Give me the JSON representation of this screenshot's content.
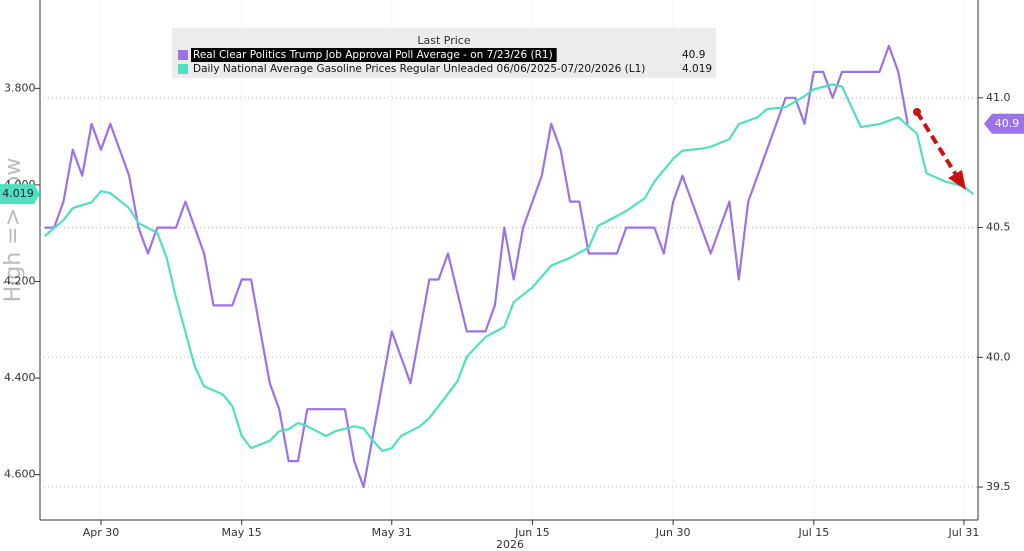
{
  "chart_data": {
    "type": "line",
    "y_label": "High => Low",
    "x_label": "2026",
    "legend_title": "Last Price",
    "legend_position": "top",
    "xlim": [
      113.5,
      213.5
    ],
    "xticks": [
      {
        "value": 120,
        "label": "Apr 30"
      },
      {
        "value": 135,
        "label": "May 15"
      },
      {
        "value": 151,
        "label": "May 31"
      },
      {
        "value": 166,
        "label": "Jun 15"
      },
      {
        "value": 181,
        "label": "Jun 30"
      },
      {
        "value": 196,
        "label": "Jul 15"
      },
      {
        "value": 212,
        "label": "Jul 31"
      }
    ],
    "ylim": [
      3.617,
      4.694
    ],
    "y_inverted": true,
    "yticks": [
      {
        "value": 3.8,
        "label": "3.800"
      },
      {
        "value": 4.0,
        "label": "4.000"
      },
      {
        "value": 4.2,
        "label": "4.200"
      },
      {
        "value": 4.4,
        "label": "4.400"
      },
      {
        "value": 4.6,
        "label": "4.600"
      }
    ],
    "y2lim": [
      39.373,
      41.377
    ],
    "y2ticks": [
      {
        "value": 41,
        "label": "41.0"
      },
      40.5,
      {
        "value": 40,
        "label": "40.0"
      },
      39.5
    ],
    "grid": true,
    "series": [
      {
        "name": "Real Clear Politics Trump Job Approval Poll Average -  on 7/23/26  (R1)",
        "color": "#9b72e8",
        "axis": "y2",
        "last_price": "40.9",
        "x": [
          114,
          115,
          116,
          117,
          118,
          119,
          120,
          121,
          122,
          123,
          124,
          125,
          126,
          128,
          129,
          130,
          131,
          132,
          134,
          135,
          136,
          137,
          138,
          139,
          140,
          141,
          142,
          146,
          147,
          148,
          151,
          152,
          153,
          154,
          155,
          156,
          157,
          159,
          161,
          162,
          163,
          164,
          165,
          167,
          168,
          169,
          170,
          171,
          172,
          175,
          176,
          179,
          180,
          181,
          182,
          185,
          187,
          188,
          189,
          190,
          193,
          194,
          195,
          196,
          197,
          198,
          199,
          203,
          204,
          205,
          206
        ],
        "values": [
          40.5,
          40.5,
          40.6,
          40.8,
          40.7,
          40.9,
          40.8,
          40.9,
          40.8,
          40.7,
          40.5,
          40.4,
          40.5,
          40.5,
          40.6,
          40.5,
          40.4,
          40.2,
          40.2,
          40.3,
          40.3,
          40.1,
          39.9,
          39.8,
          39.6,
          39.6,
          39.8,
          39.8,
          39.6,
          39.5,
          40.1,
          40.0,
          39.9,
          40.1,
          40.3,
          40.3,
          40.4,
          40.1,
          40.1,
          40.2,
          40.5,
          40.3,
          40.5,
          40.7,
          40.9,
          40.8,
          40.6,
          40.6,
          40.4,
          40.4,
          40.5,
          40.5,
          40.4,
          40.6,
          40.7,
          40.4,
          40.6,
          40.3,
          40.6,
          40.7,
          41.0,
          41.0,
          40.9,
          41.1,
          41.1,
          41.0,
          41.1,
          41.1,
          41.2,
          41.1,
          40.9
        ]
      },
      {
        "name": "Daily National Average Gasoline Prices Regular Unleaded 06/06/2025-07/20/2026  (L1)",
        "color": "#4fe0c0",
        "axis": "y",
        "last_price": "4.019",
        "x": [
          114,
          116,
          117,
          119,
          120,
          121,
          123,
          124,
          126,
          127,
          128,
          130,
          131,
          133,
          134,
          135,
          136,
          138,
          139,
          140,
          141,
          142,
          144,
          145,
          147,
          148,
          149,
          150,
          151,
          152,
          154,
          155,
          156,
          158,
          159,
          161,
          163,
          164,
          166,
          168,
          170,
          172,
          173,
          176,
          178,
          179,
          181,
          182,
          184,
          185,
          187,
          188,
          190,
          191,
          193,
          195,
          196,
          198,
          199,
          201,
          203,
          205,
          207,
          208,
          210,
          212,
          213
        ],
        "values": [
          4.106,
          4.073,
          4.048,
          4.036,
          4.013,
          4.017,
          4.048,
          4.079,
          4.099,
          4.151,
          4.233,
          4.376,
          4.417,
          4.434,
          4.458,
          4.52,
          4.545,
          4.53,
          4.51,
          4.506,
          4.493,
          4.5,
          4.52,
          4.51,
          4.5,
          4.504,
          4.53,
          4.551,
          4.545,
          4.52,
          4.5,
          4.483,
          4.458,
          4.407,
          4.356,
          4.315,
          4.294,
          4.243,
          4.212,
          4.167,
          4.151,
          4.13,
          4.085,
          4.054,
          4.027,
          3.993,
          3.946,
          3.929,
          3.925,
          3.921,
          3.905,
          3.874,
          3.86,
          3.843,
          3.839,
          3.816,
          3.802,
          3.792,
          3.796,
          3.88,
          3.874,
          3.86,
          3.894,
          3.976,
          3.993,
          4.003,
          4.019
        ]
      }
    ]
  }
}
